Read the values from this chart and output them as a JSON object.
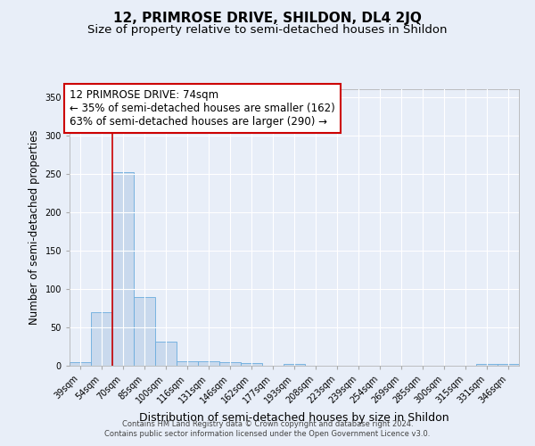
{
  "title": "12, PRIMROSE DRIVE, SHILDON, DL4 2JQ",
  "subtitle": "Size of property relative to semi-detached houses in Shildon",
  "xlabel": "Distribution of semi-detached houses by size in Shildon",
  "ylabel": "Number of semi-detached properties",
  "categories": [
    "39sqm",
    "54sqm",
    "70sqm",
    "85sqm",
    "100sqm",
    "116sqm",
    "131sqm",
    "146sqm",
    "162sqm",
    "177sqm",
    "193sqm",
    "208sqm",
    "223sqm",
    "239sqm",
    "254sqm",
    "269sqm",
    "285sqm",
    "300sqm",
    "315sqm",
    "331sqm",
    "346sqm"
  ],
  "values": [
    5,
    70,
    252,
    89,
    31,
    6,
    6,
    5,
    3,
    0,
    2,
    0,
    0,
    0,
    0,
    0,
    0,
    0,
    0,
    2,
    2
  ],
  "bar_color": "#c9d9ed",
  "bar_edge_color": "#6aacdd",
  "background_color": "#e8eef8",
  "grid_color": "#ffffff",
  "annotation_line1": "12 PRIMROSE DRIVE: 74sqm",
  "annotation_line2": "← 35% of semi-detached houses are smaller (162)",
  "annotation_line3": "63% of semi-detached houses are larger (290) →",
  "annotation_box_color": "#ffffff",
  "annotation_box_edge_color": "#cc0000",
  "vline_color": "#cc0000",
  "vline_x_index": 1.5,
  "ylim": [
    0,
    360
  ],
  "yticks": [
    0,
    50,
    100,
    150,
    200,
    250,
    300,
    350
  ],
  "footer1": "Contains HM Land Registry data © Crown copyright and database right 2024.",
  "footer2": "Contains public sector information licensed under the Open Government Licence v3.0.",
  "title_fontsize": 11,
  "subtitle_fontsize": 9.5,
  "xlabel_fontsize": 9,
  "ylabel_fontsize": 8.5,
  "tick_fontsize": 7,
  "annotation_fontsize": 8.5,
  "footer_fontsize": 6
}
